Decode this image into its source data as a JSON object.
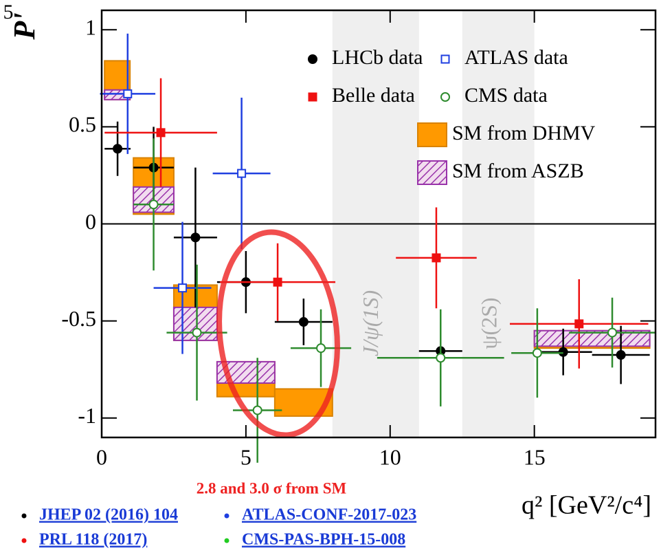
{
  "chart_data": {
    "type": "scatter",
    "y_label": "P'",
    "y_label_sub": "5",
    "x_label": "q² [GeV²/c⁴]",
    "annotation": "2.8 and 3.0 σ from SM",
    "xlim": [
      0,
      19.2
    ],
    "ylim": [
      -1.1,
      1.1
    ],
    "xticks": [
      0,
      5,
      10,
      15
    ],
    "yticks": [
      -1,
      -0.5,
      0,
      0.5,
      1
    ],
    "shaded_regions": [
      {
        "x": [
          8,
          11
        ],
        "label": "J/ψ(1S)"
      },
      {
        "x": [
          12.5,
          15
        ],
        "label": "ψ(2S)"
      }
    ],
    "boxes": [
      {
        "name": "SM from DHMV",
        "color": "#ff9900",
        "hatch": false,
        "bins": [
          [
            0.1,
            0.98
          ],
          [
            1.1,
            2.5
          ],
          [
            2.5,
            4
          ],
          [
            4,
            6
          ],
          [
            6,
            8
          ],
          [
            15,
            19
          ]
        ],
        "low": [
          0.64,
          0.05,
          -0.6,
          -0.89,
          -0.99,
          -0.64
        ],
        "high": [
          0.84,
          0.34,
          -0.315,
          -0.71,
          -0.85,
          -0.55
        ]
      },
      {
        "name": "SM from ASZB",
        "color": "#9933aa",
        "hatch": true,
        "bins": [
          [
            0.1,
            0.98
          ],
          [
            1.1,
            2.5
          ],
          [
            2.5,
            4
          ],
          [
            4,
            6
          ],
          [
            15,
            19
          ]
        ],
        "low": [
          0.64,
          0.06,
          -0.6,
          -0.82,
          -0.63
        ],
        "high": [
          0.69,
          0.19,
          -0.43,
          -0.71,
          -0.55
        ]
      }
    ],
    "series": [
      {
        "name": "LHCb data",
        "color": "#000000",
        "marker": "circle",
        "filled": true,
        "x": [
          0.55,
          1.8,
          3.25,
          5.0,
          7.0,
          11.75,
          16.0,
          18.0
        ],
        "xerr": [
          0.45,
          0.7,
          0.75,
          1.0,
          1.0,
          0.75,
          1.0,
          1.0
        ],
        "values": [
          0.387,
          0.29,
          -0.07,
          -0.3,
          -0.505,
          -0.655,
          -0.66,
          -0.675
        ],
        "yerr": [
          0.14,
          0.21,
          0.36,
          0.16,
          0.12,
          0.15,
          0.12,
          0.15
        ]
      },
      {
        "name": "ATLAS data",
        "color": "#1f3fe0",
        "marker": "square",
        "filled": false,
        "x": [
          0.9,
          2.8,
          4.85
        ],
        "xerr": [
          0.96,
          1.0,
          1.0
        ],
        "values": [
          0.67,
          -0.33,
          0.26
        ],
        "yerr": [
          0.31,
          0.34,
          0.39
        ]
      },
      {
        "name": "Belle data",
        "color": "#ee1111",
        "marker": "square",
        "filled": true,
        "x": [
          2.05,
          6.1,
          11.6,
          16.55
        ],
        "xerr": [
          1.95,
          2.0,
          1.4,
          2.4
        ],
        "values": [
          0.47,
          -0.3,
          -0.175,
          -0.515
        ],
        "yerr": [
          0.28,
          0.2,
          0.26,
          0.23
        ]
      },
      {
        "name": "CMS data",
        "color": "#2e8b2e",
        "marker": "circle",
        "filled": false,
        "x": [
          1.8,
          3.3,
          5.4,
          7.6,
          11.75,
          15.1,
          17.7
        ],
        "xerr": [
          0.7,
          1.05,
          0.85,
          1.05,
          2.2,
          0.9,
          1.5
        ],
        "values": [
          0.1,
          -0.56,
          -0.96,
          -0.64,
          -0.69,
          -0.665,
          -0.56
        ],
        "yerr": [
          0.34,
          0.35,
          0.27,
          0.2,
          0.25,
          0.23,
          0.18
        ]
      }
    ],
    "references": [
      {
        "text": "JHEP 02 (2016) 104",
        "color": "#000000"
      },
      {
        "text": "ATLAS-CONF-2017-023",
        "color": "#1f3fe0"
      },
      {
        "text": "PRL 118 (2017)",
        "color": "#ee1111"
      },
      {
        "text": "CMS-PAS-BPH-15-008",
        "color": "#22cc22"
      }
    ]
  }
}
